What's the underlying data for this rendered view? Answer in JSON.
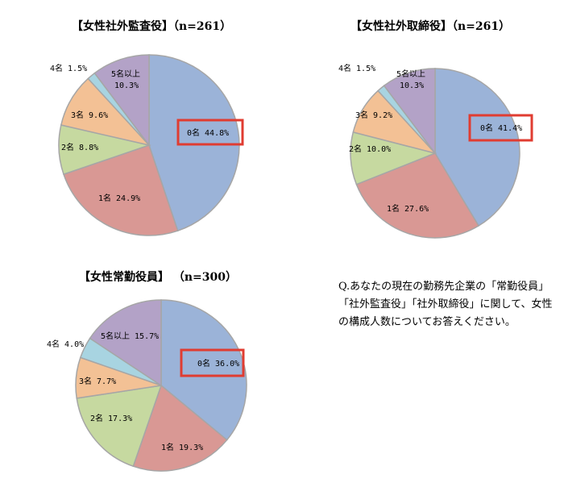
{
  "chart_data": [
    {
      "type": "pie",
      "title": "【女性社外監査役】（n=261）",
      "highlight": "0名",
      "slices": [
        {
          "label": "0名",
          "value": 44.8,
          "text": "0名 44.8%",
          "color": "#9BB3D8"
        },
        {
          "label": "1名",
          "value": 24.9,
          "text": "1名 24.9%",
          "color": "#D99894"
        },
        {
          "label": "2名",
          "value": 8.8,
          "text": "2名 8.8%",
          "color": "#C6D9A0"
        },
        {
          "label": "3名",
          "value": 9.6,
          "text": "3名 9.6%",
          "color": "#F3C195"
        },
        {
          "label": "4名",
          "value": 1.5,
          "text": "4名 1.5%",
          "color": "#A8D4E1"
        },
        {
          "label": "5名以上",
          "value": 10.3,
          "text1": "5名以上",
          "text2": "10.3%",
          "color": "#B3A2C7"
        }
      ]
    },
    {
      "type": "pie",
      "title": "【女性社外取締役】（n=261）",
      "highlight": "0名",
      "slices": [
        {
          "label": "0名",
          "value": 41.4,
          "text": "0名 41.4%",
          "color": "#9BB3D8"
        },
        {
          "label": "1名",
          "value": 27.6,
          "text": "1名 27.6%",
          "color": "#D99894"
        },
        {
          "label": "2名",
          "value": 10.0,
          "text": "2名 10.0%",
          "color": "#C6D9A0"
        },
        {
          "label": "3名",
          "value": 9.2,
          "text": "3名 9.2%",
          "color": "#F3C195"
        },
        {
          "label": "4名",
          "value": 1.5,
          "text": "4名 1.5%",
          "color": "#A8D4E1"
        },
        {
          "label": "5名以上",
          "value": 10.3,
          "text1": "5名以上",
          "text2": "10.3%",
          "color": "#B3A2C7"
        }
      ]
    },
    {
      "type": "pie",
      "title": "【女性常勤役員】 （n=300）",
      "highlight": "0名",
      "slices": [
        {
          "label": "0名",
          "value": 36.0,
          "text": "0名 36.0%",
          "color": "#9BB3D8"
        },
        {
          "label": "1名",
          "value": 19.3,
          "text": "1名 19.3%",
          "color": "#D99894"
        },
        {
          "label": "2名",
          "value": 17.3,
          "text": "2名 17.3%",
          "color": "#C6D9A0"
        },
        {
          "label": "3名",
          "value": 7.7,
          "text": "3名 7.7%",
          "color": "#F3C195"
        },
        {
          "label": "4名",
          "value": 4.0,
          "text": "4名 4.0%",
          "color": "#A8D4E1"
        },
        {
          "label": "5名以上",
          "value": 15.7,
          "text": "5名以上 15.7%",
          "color": "#B3A2C7"
        }
      ]
    }
  ],
  "highlight_color": "#E03C31",
  "question": "Q.あなたの現在の勤務先企業の「常勤役員」「社外監査役」「社外取締役」に関して、女性の構成人数についてお答えください。"
}
